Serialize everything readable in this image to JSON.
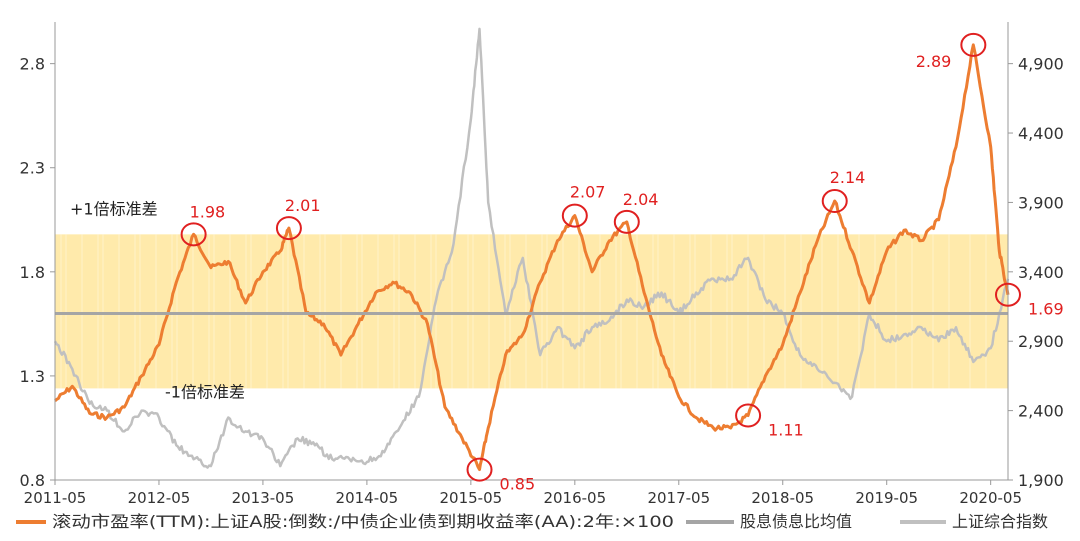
{
  "chart_data": {
    "type": "line",
    "x_range": [
      "2011-05",
      "2020-07"
    ],
    "x_ticks": [
      "2011-05",
      "2012-05",
      "2013-05",
      "2014-05",
      "2015-05",
      "2016-05",
      "2017-05",
      "2018-05",
      "2019-05",
      "2020-05"
    ],
    "y_left": {
      "range": [
        0.8,
        3.0
      ],
      "ticks": [
        "0.8",
        "1.3",
        "1.8",
        "2.3",
        "2.8"
      ]
    },
    "y_right": {
      "range": [
        1900,
        5200
      ],
      "ticks": [
        "1,900",
        "2,400",
        "2,900",
        "3,400",
        "3,900",
        "4,400",
        "4,900"
      ]
    },
    "mean_value": 1.6,
    "band": {
      "lower": 1.24,
      "upper": 1.98,
      "upper_label": "+1倍标准差",
      "lower_label": "-1倍标准差"
    },
    "series": [
      {
        "name": "滚动市盈率(TTM):上证A股:倒数:/中债企业债到期收益率(AA):2年:×100",
        "axis": "left",
        "color": "#ed7d31",
        "points": [
          [
            "2011-05",
            1.18
          ],
          [
            "2011-07",
            1.25
          ],
          [
            "2011-09",
            1.12
          ],
          [
            "2011-11",
            1.1
          ],
          [
            "2012-01",
            1.15
          ],
          [
            "2012-03",
            1.3
          ],
          [
            "2012-05",
            1.45
          ],
          [
            "2012-07",
            1.75
          ],
          [
            "2012-09",
            1.98
          ],
          [
            "2012-11",
            1.82
          ],
          [
            "2013-01",
            1.85
          ],
          [
            "2013-03",
            1.65
          ],
          [
            "2013-05",
            1.8
          ],
          [
            "2013-07",
            1.9
          ],
          [
            "2013-08",
            2.01
          ],
          [
            "2013-10",
            1.6
          ],
          [
            "2013-12",
            1.55
          ],
          [
            "2014-02",
            1.4
          ],
          [
            "2014-04",
            1.55
          ],
          [
            "2014-06",
            1.7
          ],
          [
            "2014-08",
            1.75
          ],
          [
            "2014-10",
            1.7
          ],
          [
            "2014-12",
            1.55
          ],
          [
            "2015-02",
            1.15
          ],
          [
            "2015-04",
            1.0
          ],
          [
            "2015-06",
            0.85
          ],
          [
            "2015-07",
            1.05
          ],
          [
            "2015-09",
            1.4
          ],
          [
            "2015-11",
            1.5
          ],
          [
            "2016-01",
            1.75
          ],
          [
            "2016-03",
            1.95
          ],
          [
            "2016-05",
            2.07
          ],
          [
            "2016-07",
            1.8
          ],
          [
            "2016-09",
            1.95
          ],
          [
            "2016-11",
            2.04
          ],
          [
            "2017-01",
            1.7
          ],
          [
            "2017-03",
            1.4
          ],
          [
            "2017-05",
            1.2
          ],
          [
            "2017-07",
            1.1
          ],
          [
            "2017-09",
            1.05
          ],
          [
            "2017-11",
            1.05
          ],
          [
            "2018-01",
            1.11
          ],
          [
            "2018-03",
            1.3
          ],
          [
            "2018-05",
            1.45
          ],
          [
            "2018-07",
            1.7
          ],
          [
            "2018-09",
            1.95
          ],
          [
            "2018-11",
            2.14
          ],
          [
            "2019-01",
            1.9
          ],
          [
            "2019-03",
            1.65
          ],
          [
            "2019-05",
            1.9
          ],
          [
            "2019-07",
            2.0
          ],
          [
            "2019-09",
            1.95
          ],
          [
            "2019-11",
            2.05
          ],
          [
            "2020-01",
            2.4
          ],
          [
            "2020-03",
            2.89
          ],
          [
            "2020-05",
            2.4
          ],
          [
            "2020-06",
            1.9
          ],
          [
            "2020-07",
            1.69
          ]
        ]
      },
      {
        "name": "股息债息比均值",
        "axis": "left",
        "color": "#a5a5a5",
        "points": [
          [
            "2011-05",
            1.6
          ],
          [
            "2020-07",
            1.6
          ]
        ]
      },
      {
        "name": "上证综合指数",
        "axis": "right",
        "color": "#c0c0c0",
        "points": [
          [
            "2011-05",
            2900
          ],
          [
            "2011-07",
            2700
          ],
          [
            "2011-09",
            2450
          ],
          [
            "2011-11",
            2400
          ],
          [
            "2012-01",
            2250
          ],
          [
            "2012-03",
            2400
          ],
          [
            "2012-05",
            2350
          ],
          [
            "2012-07",
            2150
          ],
          [
            "2012-09",
            2050
          ],
          [
            "2012-11",
            2000
          ],
          [
            "2013-01",
            2350
          ],
          [
            "2013-03",
            2250
          ],
          [
            "2013-05",
            2200
          ],
          [
            "2013-07",
            2000
          ],
          [
            "2013-09",
            2200
          ],
          [
            "2013-11",
            2150
          ],
          [
            "2014-01",
            2050
          ],
          [
            "2014-03",
            2050
          ],
          [
            "2014-05",
            2030
          ],
          [
            "2014-07",
            2100
          ],
          [
            "2014-09",
            2300
          ],
          [
            "2014-11",
            2500
          ],
          [
            "2015-01",
            3200
          ],
          [
            "2015-03",
            3600
          ],
          [
            "2015-05",
            4500
          ],
          [
            "2015-06",
            5150
          ],
          [
            "2015-07",
            3900
          ],
          [
            "2015-09",
            3100
          ],
          [
            "2015-11",
            3500
          ],
          [
            "2016-01",
            2800
          ],
          [
            "2016-03",
            3000
          ],
          [
            "2016-05",
            2850
          ],
          [
            "2016-07",
            3000
          ],
          [
            "2016-09",
            3050
          ],
          [
            "2016-11",
            3200
          ],
          [
            "2017-01",
            3150
          ],
          [
            "2017-03",
            3250
          ],
          [
            "2017-05",
            3100
          ],
          [
            "2017-07",
            3250
          ],
          [
            "2017-09",
            3350
          ],
          [
            "2017-11",
            3350
          ],
          [
            "2018-01",
            3500
          ],
          [
            "2018-03",
            3200
          ],
          [
            "2018-05",
            3100
          ],
          [
            "2018-07",
            2800
          ],
          [
            "2018-09",
            2700
          ],
          [
            "2018-11",
            2600
          ],
          [
            "2019-01",
            2500
          ],
          [
            "2019-03",
            3100
          ],
          [
            "2019-05",
            2900
          ],
          [
            "2019-07",
            2950
          ],
          [
            "2019-09",
            3000
          ],
          [
            "2019-11",
            2900
          ],
          [
            "2020-01",
            3000
          ],
          [
            "2020-03",
            2750
          ],
          [
            "2020-05",
            2850
          ],
          [
            "2020-07",
            3350
          ]
        ]
      }
    ],
    "annotations": [
      {
        "label": "1.98",
        "x": "2012-09",
        "y": 1.98,
        "pos": "right"
      },
      {
        "label": "2.01",
        "x": "2013-08",
        "y": 2.01,
        "pos": "right"
      },
      {
        "label": "0.85",
        "x": "2015-06",
        "y": 0.85,
        "pos": "right-below"
      },
      {
        "label": "2.07",
        "x": "2016-05",
        "y": 2.07,
        "pos": "above"
      },
      {
        "label": "2.04",
        "x": "2016-11",
        "y": 2.04,
        "pos": "right"
      },
      {
        "label": "1.11",
        "x": "2018-01",
        "y": 1.11,
        "pos": "right-below"
      },
      {
        "label": "2.14",
        "x": "2018-11",
        "y": 2.14,
        "pos": "above"
      },
      {
        "label": "2.89",
        "x": "2020-03",
        "y": 2.89,
        "pos": "left"
      },
      {
        "label": "1.69",
        "x": "2020-07",
        "y": 1.69,
        "pos": "right-below"
      }
    ],
    "legend": {
      "position": "bottom"
    }
  }
}
